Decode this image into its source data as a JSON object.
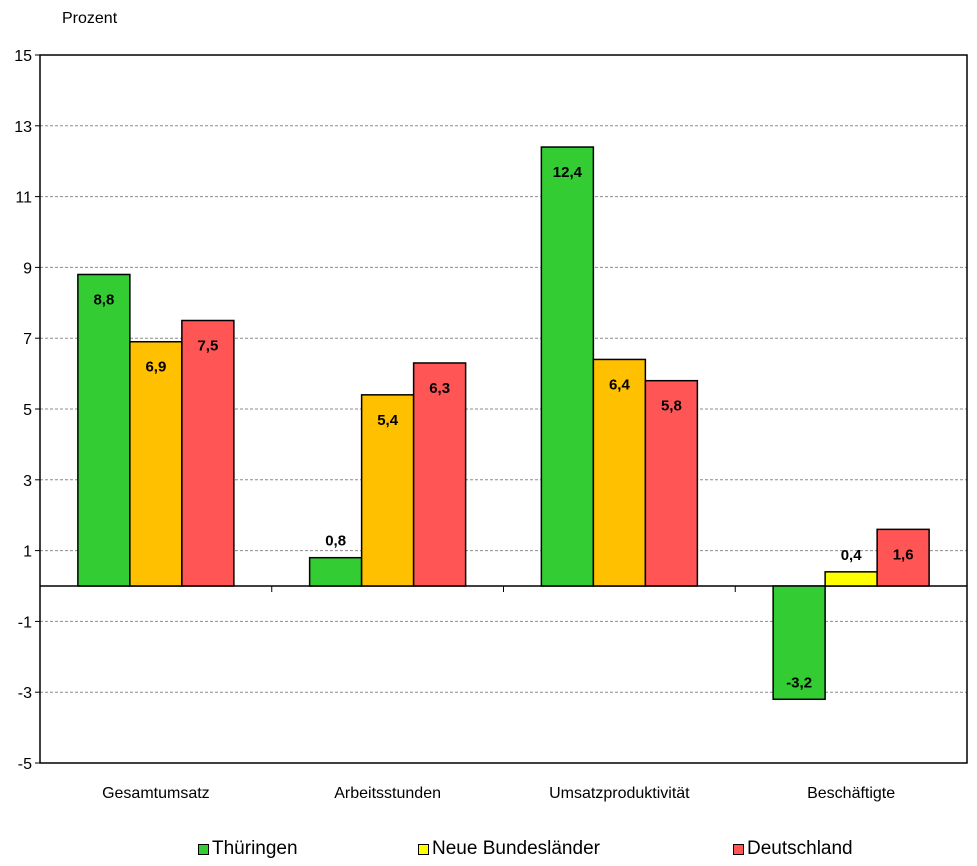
{
  "chart_data": {
    "type": "bar",
    "ylabel": "Prozent",
    "ylim": [
      -5,
      15
    ],
    "yticks": [
      15,
      13,
      11,
      9,
      7,
      5,
      3,
      1,
      -1,
      -3,
      -5
    ],
    "categories": [
      "Gesamtumsatz",
      "Arbeitsstunden",
      "Umsatzproduktivität",
      "Beschäftigte"
    ],
    "series": [
      {
        "name": "Thüringen",
        "values": [
          8.8,
          0.8,
          12.4,
          -3.2
        ],
        "labels": [
          "8,8",
          "0,8",
          "12,4",
          "-3,2"
        ],
        "color": "#33cc33"
      },
      {
        "name": "Neue Bundesländer",
        "values": [
          6.9,
          5.4,
          6.4,
          0.4
        ],
        "labels": [
          "6,9",
          "5,4",
          "6,4",
          "0,4"
        ],
        "color": "#ffc000",
        "legend_color": "#ffff00",
        "bar_colors": [
          "#ffc000",
          "#ffc000",
          "#ffc000",
          "#ffff00"
        ]
      },
      {
        "name": "Deutschland",
        "values": [
          7.5,
          6.3,
          5.8,
          1.6
        ],
        "labels": [
          "7,5",
          "6,3",
          "5,8",
          "1,6"
        ],
        "color": "#ff5555"
      }
    ],
    "grid": true,
    "legend_position": "bottom"
  }
}
